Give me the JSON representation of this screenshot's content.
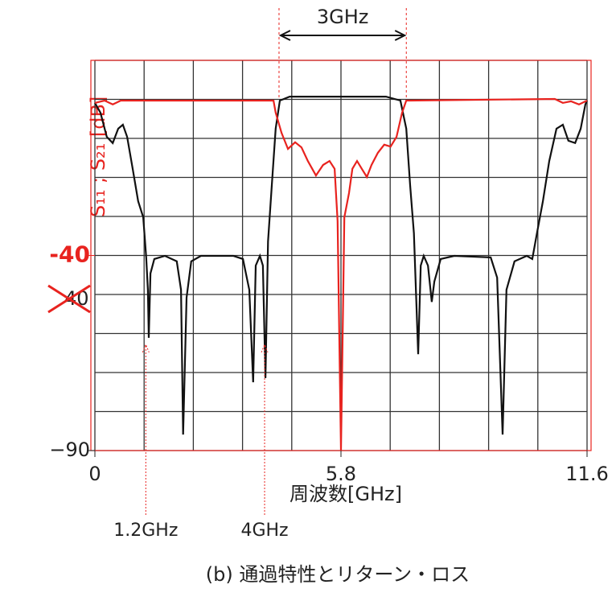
{
  "chart_data": {
    "type": "line",
    "xlabel": "周波数[GHz]",
    "ylabel": "S₁₁ ; S₂₁ [dB]",
    "caption": "(b) 通過特性とリターン・ロス",
    "xlim": [
      0,
      11.6
    ],
    "xticks": [
      0,
      5.8,
      11.6
    ],
    "ylim": [
      -90,
      10
    ],
    "yticks": [
      {
        "value": -90,
        "label": "−90"
      },
      {
        "value": -40,
        "label": "-40"
      }
    ],
    "grid": true,
    "annotations": [
      {
        "text": "3GHz",
        "x": [
          4.34,
          7.34
        ]
      },
      {
        "text": "1.2GHz",
        "x": 1.2
      },
      {
        "text": "4GHz",
        "x": 4.0
      },
      {
        "text": "40"
      }
    ],
    "series": [
      {
        "color": "#111111",
        "x": [
          0,
          0.13,
          0.28,
          0.42,
          0.55,
          0.66,
          0.76,
          0.89,
          1.02,
          1.14,
          1.21,
          1.25,
          1.27,
          1.31,
          1.4,
          1.65,
          1.93,
          2.03,
          2.08,
          2.16,
          2.27,
          2.5,
          3.26,
          3.49,
          3.64,
          3.73,
          3.79,
          3.89,
          3.96,
          4.02,
          4.08,
          4.17,
          4.26,
          4.36,
          4.59,
          6.86,
          7.2,
          7.34,
          7.43,
          7.52,
          7.62,
          7.68,
          7.75,
          7.85,
          7.94,
          8.0,
          8.15,
          8.47,
          9.33,
          9.48,
          9.61,
          9.7,
          9.89,
          10.18,
          10.31,
          10.42,
          10.56,
          10.71,
          10.88,
          11.03,
          11.16,
          11.32,
          11.45,
          11.56,
          11.6
        ],
        "values": [
          -0.9,
          -3.4,
          -9.6,
          -11.2,
          -7.5,
          -6.5,
          -9.6,
          -17.8,
          -26.1,
          -30.2,
          -40.5,
          -48.8,
          -61.1,
          -44.6,
          -40.9,
          -40.1,
          -41.5,
          -48.8,
          -85.9,
          -50.8,
          -41.5,
          -40.1,
          -40.1,
          -40.9,
          -48.8,
          -72.5,
          -42.6,
          -40.1,
          -42.6,
          -71.4,
          -36.4,
          -22.0,
          -7.5,
          -0.3,
          0.7,
          0.7,
          -0.3,
          -7.5,
          -22.0,
          -34.3,
          -65.3,
          -42.6,
          -40.1,
          -42.6,
          -51.9,
          -46.7,
          -40.9,
          -40.1,
          -40.5,
          -45.7,
          -85.9,
          -48.8,
          -41.5,
          -40.1,
          -40.9,
          -34.3,
          -26.1,
          -15.8,
          -7.5,
          -6.5,
          -10.6,
          -11.2,
          -7.5,
          -1.3,
          -0.3
        ]
      },
      {
        "color": "#e8231f",
        "x": [
          0,
          0.23,
          0.42,
          0.61,
          4.21,
          4.26,
          4.4,
          4.55,
          4.72,
          4.87,
          5.02,
          5.21,
          5.38,
          5.53,
          5.65,
          5.72,
          5.8,
          5.88,
          5.99,
          6.07,
          6.18,
          6.29,
          6.41,
          6.52,
          6.67,
          6.82,
          6.97,
          7.11,
          7.24,
          7.34,
          10.84,
          11.03,
          11.22,
          11.41,
          11.6
        ],
        "values": [
          -0.9,
          -0.3,
          -1.3,
          -0.3,
          -0.3,
          -3.4,
          -8.6,
          -12.7,
          -11.0,
          -12.3,
          -15.8,
          -19.5,
          -16.8,
          -15.8,
          -17.8,
          -31.2,
          -90,
          -30.2,
          -24.0,
          -17.8,
          -15.8,
          -17.8,
          -19.9,
          -16.8,
          -13.7,
          -11.6,
          -12.1,
          -9.6,
          -3.4,
          -0.3,
          0.1,
          -0.9,
          -0.5,
          -1.3,
          -0.3
        ]
      }
    ]
  }
}
